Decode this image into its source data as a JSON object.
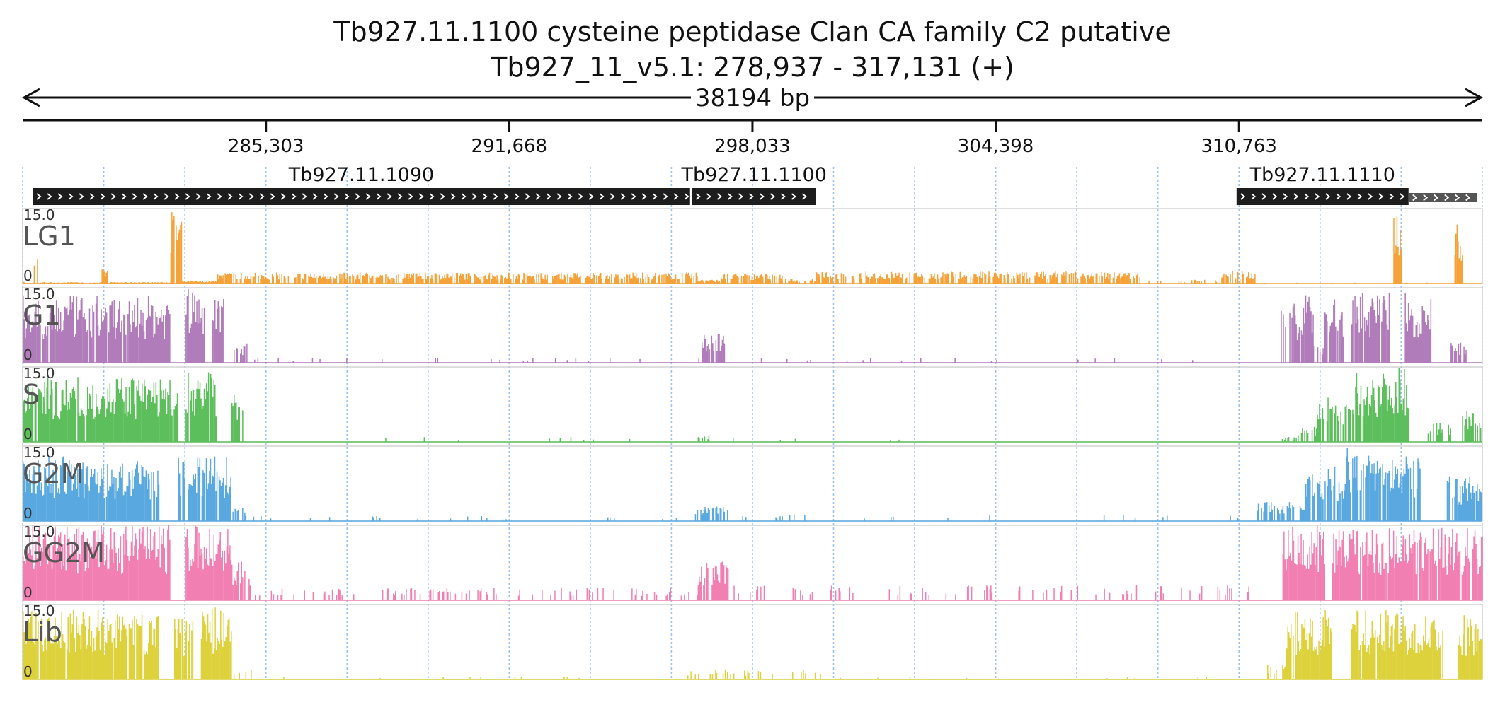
{
  "chart_data": {
    "type": "bar",
    "title": "Tb927.11.1100  cysteine peptidase  Clan CA  family C2  putative",
    "subtitle": "Tb927_11_v5.1: 278,937 - 317,131 (+)",
    "span_label": "38194 bp",
    "xlim": [
      278937,
      317131
    ],
    "xticks": [
      "285,303",
      "291,668",
      "298,033",
      "304,398",
      "310,763"
    ],
    "genes": [
      {
        "name": "Tb927.11.1090",
        "start": 279200,
        "end": 296400,
        "strand": "+"
      },
      {
        "name": "Tb927.11.1100",
        "start": 296450,
        "end": 299700,
        "strand": "+"
      },
      {
        "name": "Tb927.11.1110",
        "start": 310700,
        "end": 315200,
        "strand": "+"
      },
      {
        "name": "",
        "start": 315200,
        "end": 317000,
        "strand": "+",
        "style": "partial"
      }
    ],
    "track_range_labels": [
      "15.0",
      "0"
    ],
    "ylim": [
      0,
      15
    ],
    "series": [
      {
        "name": "LG1",
        "color": "#f5a23a",
        "profile": [
          [
            278937,
            279200,
            0.5,
            0.3
          ],
          [
            279200,
            279400,
            6,
            0.4
          ],
          [
            279400,
            281000,
            0.3,
            0.8
          ],
          [
            281000,
            281200,
            3,
            0.6
          ],
          [
            281200,
            282800,
            0.3,
            1.0
          ],
          [
            282800,
            283100,
            15,
            0.9
          ],
          [
            283100,
            284000,
            0.5,
            1.0
          ],
          [
            284000,
            296600,
            2.2,
            0.75
          ],
          [
            296600,
            297200,
            0.8,
            0.7
          ],
          [
            297200,
            298800,
            2,
            0.75
          ],
          [
            298800,
            299700,
            1,
            0.7
          ],
          [
            299700,
            308200,
            2.4,
            0.75
          ],
          [
            308200,
            310300,
            0.8,
            0.25
          ],
          [
            310300,
            311200,
            2.5,
            0.7
          ],
          [
            311200,
            314800,
            0.2,
            0.05
          ],
          [
            314800,
            315000,
            15,
            1.0
          ],
          [
            315000,
            316400,
            0.2,
            0.05
          ],
          [
            316400,
            316600,
            12,
            0.9
          ],
          [
            316600,
            317131,
            0.2,
            0.05
          ]
        ]
      },
      {
        "name": "G1",
        "color": "#b07cba",
        "profile": [
          [
            278937,
            282800,
            13.5,
            0.95
          ],
          [
            282800,
            283200,
            0.2,
            0.0
          ],
          [
            283200,
            283700,
            15,
            1.0
          ],
          [
            283700,
            283900,
            0.2,
            0.0
          ],
          [
            283900,
            284200,
            15,
            1.0
          ],
          [
            284200,
            284400,
            0.2,
            0.0
          ],
          [
            284400,
            284800,
            4,
            0.6
          ],
          [
            284800,
            296700,
            1,
            0.04
          ],
          [
            296700,
            297300,
            6,
            0.8
          ],
          [
            297300,
            311800,
            1,
            0.025
          ],
          [
            311800,
            312300,
            12,
            0.7
          ],
          [
            312300,
            312700,
            15,
            0.9
          ],
          [
            312700,
            313000,
            4,
            0.5
          ],
          [
            313000,
            313500,
            13,
            0.8
          ],
          [
            313500,
            313700,
            0.3,
            0.0
          ],
          [
            313700,
            314700,
            14,
            0.9
          ],
          [
            314700,
            315100,
            0.3,
            0.0
          ],
          [
            315100,
            315800,
            14,
            0.9
          ],
          [
            315800,
            316300,
            0.2,
            0.0
          ],
          [
            316300,
            316700,
            4,
            0.7
          ],
          [
            316700,
            317131,
            0.2,
            0.0
          ]
        ]
      },
      {
        "name": "S",
        "color": "#5cbf5c",
        "profile": [
          [
            278937,
            279500,
            11,
            0.9
          ],
          [
            279500,
            283000,
            13,
            0.95
          ],
          [
            283000,
            283200,
            0.2,
            0.0
          ],
          [
            283200,
            284000,
            14,
            0.95
          ],
          [
            284000,
            284400,
            0.2,
            0.0
          ],
          [
            284400,
            284700,
            12,
            0.9
          ],
          [
            284700,
            296600,
            1,
            0.02
          ],
          [
            296600,
            296900,
            1.5,
            0.5
          ],
          [
            296900,
            311800,
            1,
            0.02
          ],
          [
            311800,
            312300,
            1,
            0.5
          ],
          [
            312300,
            312800,
            3,
            0.6
          ],
          [
            312800,
            313800,
            9,
            0.7
          ],
          [
            313800,
            314600,
            14,
            0.9
          ],
          [
            314600,
            315200,
            15,
            1.0
          ],
          [
            315200,
            315700,
            0.2,
            0.0
          ],
          [
            315700,
            316300,
            4,
            0.6
          ],
          [
            316300,
            316600,
            0.3,
            0.0
          ],
          [
            316600,
            317131,
            7,
            0.8
          ]
        ]
      },
      {
        "name": "G2M",
        "color": "#5aa8e0",
        "profile": [
          [
            278937,
            280500,
            13,
            0.95
          ],
          [
            280500,
            282500,
            12,
            0.9
          ],
          [
            282500,
            283000,
            0.2,
            0.0
          ],
          [
            283000,
            284400,
            13,
            0.9
          ],
          [
            284400,
            284800,
            3,
            0.5
          ],
          [
            284800,
            296500,
            1,
            0.05
          ],
          [
            296500,
            297400,
            3,
            0.6
          ],
          [
            297400,
            299800,
            1.5,
            0.08
          ],
          [
            299800,
            311200,
            1.2,
            0.03
          ],
          [
            311200,
            312500,
            4,
            0.6
          ],
          [
            312500,
            313500,
            11,
            0.8
          ],
          [
            313500,
            314900,
            15,
            0.95
          ],
          [
            314900,
            315500,
            13,
            0.8
          ],
          [
            315500,
            316200,
            0.3,
            0.0
          ],
          [
            316200,
            317131,
            9,
            0.8
          ]
        ]
      },
      {
        "name": "GG2M",
        "color": "#f27fb2",
        "profile": [
          [
            278937,
            282800,
            15,
            1.0
          ],
          [
            282800,
            283200,
            0.2,
            0.0
          ],
          [
            283200,
            284400,
            15,
            1.0
          ],
          [
            284400,
            284900,
            8,
            0.6
          ],
          [
            284900,
            296600,
            2.5,
            0.18
          ],
          [
            296600,
            297400,
            8,
            0.8
          ],
          [
            297400,
            311100,
            3,
            0.18
          ],
          [
            311100,
            311900,
            0.2,
            0.0
          ],
          [
            311900,
            313000,
            15,
            1.0
          ],
          [
            313000,
            313200,
            0.2,
            0.0
          ],
          [
            313200,
            317131,
            14.5,
            0.95
          ]
        ]
      },
      {
        "name": "Lib",
        "color": "#ddd13c",
        "profile": [
          [
            278937,
            282500,
            14,
            0.95
          ],
          [
            282500,
            282900,
            0.2,
            0.0
          ],
          [
            282900,
            283400,
            13,
            0.9
          ],
          [
            283400,
            283600,
            0.2,
            0.0
          ],
          [
            283600,
            284400,
            14.5,
            1.0
          ],
          [
            284400,
            285000,
            2,
            0.3
          ],
          [
            285000,
            296300,
            0.6,
            0.02
          ],
          [
            296300,
            299900,
            2,
            0.2
          ],
          [
            299900,
            305000,
            0.6,
            0.03
          ],
          [
            305000,
            311500,
            0.6,
            0.03
          ],
          [
            311500,
            312000,
            3,
            0.5
          ],
          [
            312000,
            313200,
            14,
            0.9
          ],
          [
            313200,
            313700,
            0.2,
            0.0
          ],
          [
            313700,
            316100,
            14,
            0.95
          ],
          [
            316100,
            316500,
            0.2,
            0.0
          ],
          [
            316500,
            317131,
            13,
            0.9
          ]
        ]
      }
    ]
  }
}
